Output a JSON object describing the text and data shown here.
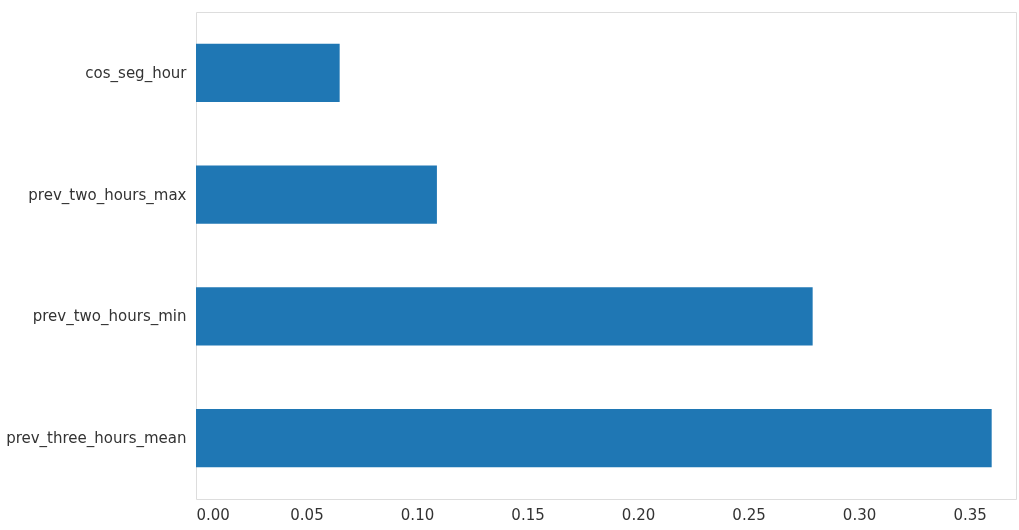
{
  "chart_data": {
    "type": "bar",
    "orientation": "horizontal",
    "categories": [
      "cos_seg_hour",
      "prev_two_hours_max",
      "prev_two_hours_min",
      "prev_three_hours_mean"
    ],
    "values": [
      0.065,
      0.109,
      0.279,
      0.36
    ],
    "color": "#1f77b4",
    "xlim": [
      0,
      0.371
    ],
    "xticks": [
      {
        "value": 0,
        "label": "0.00"
      },
      {
        "value": 0.05,
        "label": "0.05"
      },
      {
        "value": 0.1,
        "label": "0.10"
      },
      {
        "value": 0.15,
        "label": "0.15"
      },
      {
        "value": 0.2,
        "label": "0.20"
      },
      {
        "value": 0.25,
        "label": "0.25"
      },
      {
        "value": 0.3,
        "label": "0.30"
      },
      {
        "value": 0.35,
        "label": "0.35"
      }
    ],
    "grid": false
  }
}
